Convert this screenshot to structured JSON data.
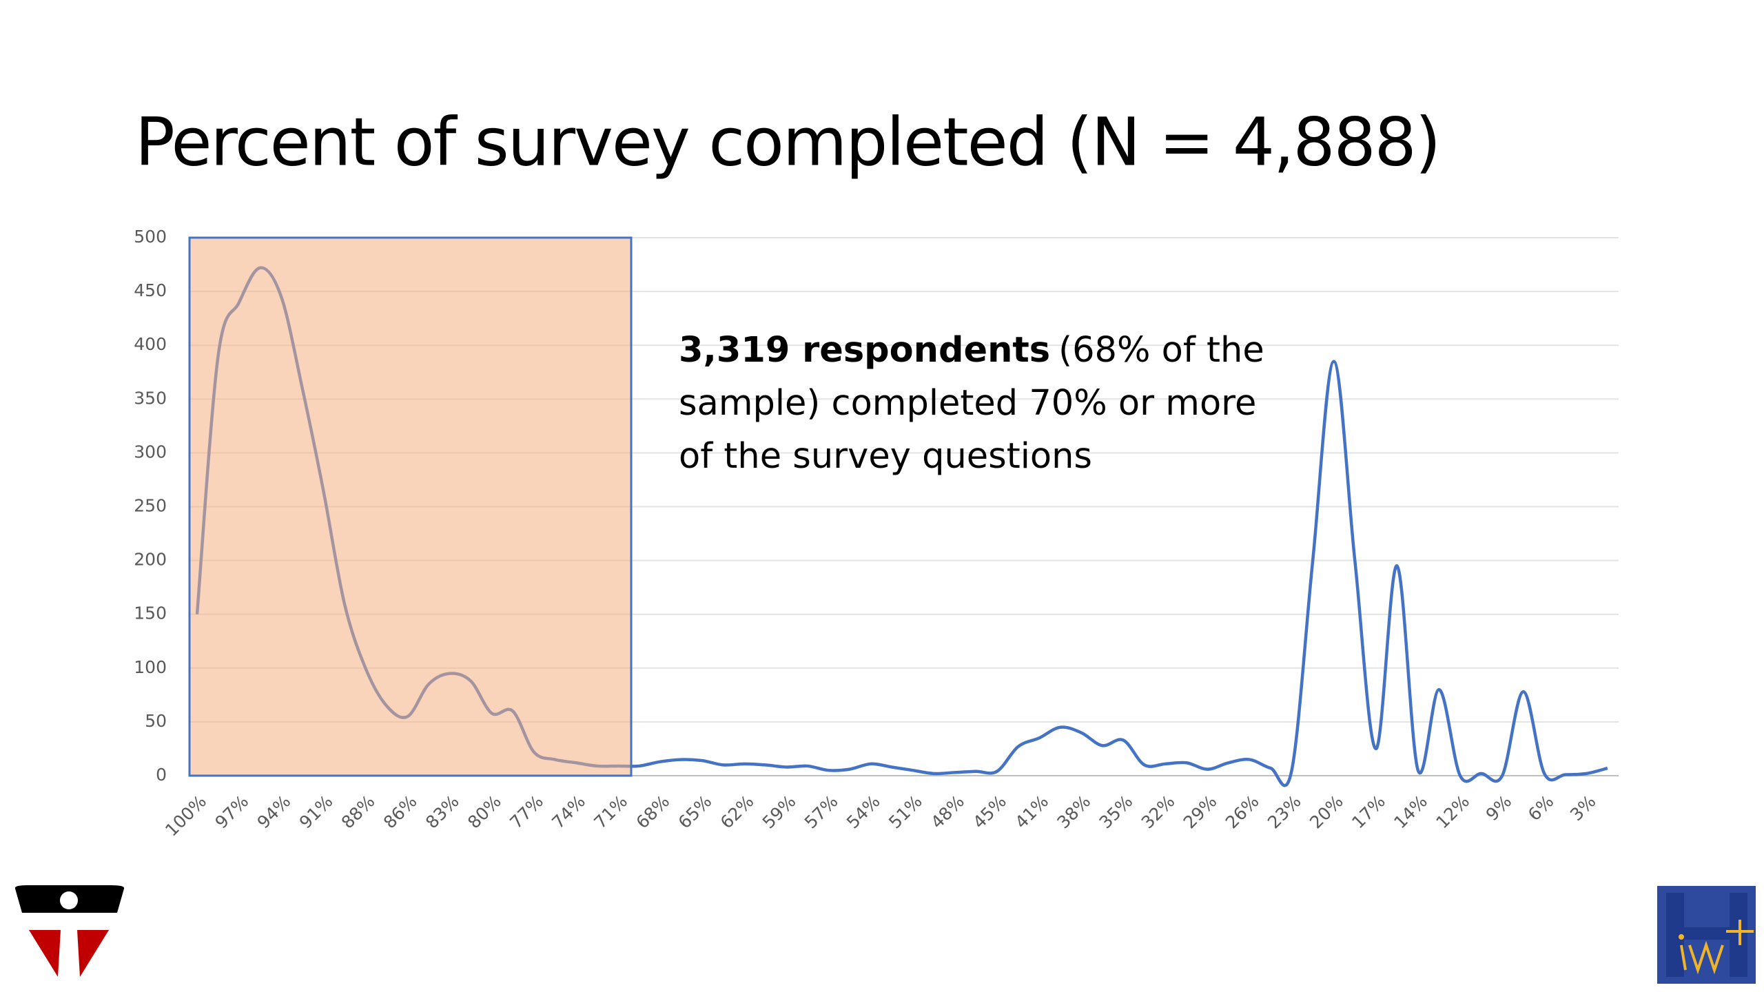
{
  "chart_data": {
    "type": "line",
    "title": "Percent of survey completed (N = 4,888)",
    "annotation_bold": "3,319 respondents",
    "annotation_text": "(68% of the sample) completed 70% or more of the survey questions",
    "categories": [
      "100%",
      null,
      "97%",
      null,
      "94%",
      null,
      "91%",
      null,
      "88%",
      null,
      "86%",
      null,
      "83%",
      null,
      "80%",
      null,
      "77%",
      null,
      "74%",
      null,
      "71%",
      null,
      "68%",
      null,
      "65%",
      null,
      "62%",
      null,
      "59%",
      null,
      "57%",
      null,
      "54%",
      null,
      "51%",
      null,
      "48%",
      null,
      "45%",
      null,
      "41%",
      null,
      "38%",
      null,
      "35%",
      null,
      "32%",
      null,
      "29%",
      null,
      "26%",
      null,
      "23%",
      null,
      "20%",
      null,
      "17%",
      null,
      "14%",
      null,
      "12%",
      null,
      "9%",
      null,
      "6%",
      null,
      "3%",
      null
    ],
    "values": [
      150,
      390,
      440,
      472,
      445,
      360,
      265,
      160,
      100,
      65,
      55,
      85,
      95,
      88,
      58,
      60,
      22,
      15,
      12,
      9,
      9,
      9,
      13,
      15,
      14,
      10,
      11,
      10,
      8,
      9,
      5,
      6,
      11,
      8,
      5,
      2,
      3,
      4,
      4,
      27,
      35,
      45,
      40,
      28,
      33,
      10,
      11,
      12,
      6,
      12,
      15,
      7,
      5,
      200,
      385,
      200,
      25,
      195,
      5,
      80,
      0,
      2,
      0,
      78,
      2,
      1,
      2,
      7
    ],
    "color": "#4472c4",
    "highlight_color": "#f4b183",
    "ylim": [
      0,
      500
    ],
    "yticks": [
      0,
      50,
      100,
      150,
      200,
      250,
      300,
      350,
      400,
      450,
      500
    ],
    "grid": true
  }
}
